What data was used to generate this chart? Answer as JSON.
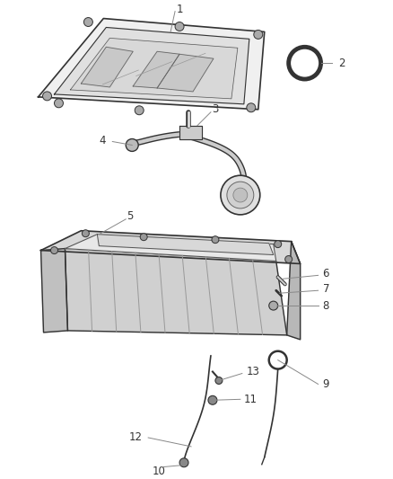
{
  "bg_color": "#ffffff",
  "fig_width": 4.38,
  "fig_height": 5.33,
  "dpi": 100,
  "line_color": "#333333",
  "text_color": "#333333",
  "label_fontsize": 8.5,
  "part_fill": "#e8e8e8",
  "part_edge": "#333333",
  "inner_fill": "#d0d0d0"
}
